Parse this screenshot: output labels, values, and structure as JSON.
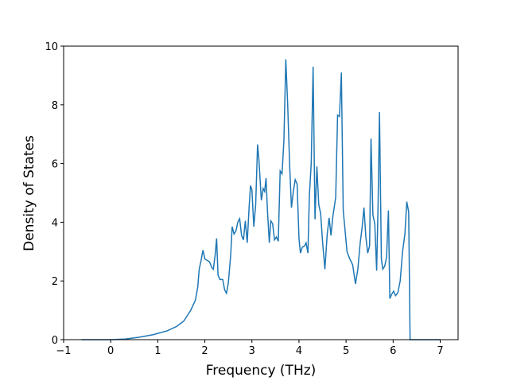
{
  "chart_data": {
    "type": "line",
    "xlabel": "Frequency (THz)",
    "ylabel": "Density of States",
    "xlim": [
      -1.0,
      7.38
    ],
    "ylim": [
      0,
      10
    ],
    "xticks": [
      {
        "value": -1,
        "label": "−1"
      },
      0,
      1,
      2,
      3,
      4,
      5,
      6,
      7
    ],
    "yticks": [
      0,
      2,
      4,
      6,
      8,
      10
    ],
    "x": [
      -0.62,
      0,
      0.3,
      0.6,
      0.9,
      1.2,
      1.4,
      1.55,
      1.7,
      1.8,
      1.85,
      1.88,
      1.92,
      1.96,
      2.0,
      2.05,
      2.1,
      2.15,
      2.18,
      2.22,
      2.25,
      2.28,
      2.32,
      2.38,
      2.42,
      2.46,
      2.5,
      2.55,
      2.58,
      2.62,
      2.66,
      2.7,
      2.74,
      2.78,
      2.82,
      2.86,
      2.9,
      2.94,
      2.97,
      3.0,
      3.04,
      3.08,
      3.12,
      3.15,
      3.2,
      3.24,
      3.27,
      3.3,
      3.33,
      3.37,
      3.4,
      3.44,
      3.48,
      3.52,
      3.56,
      3.6,
      3.64,
      3.68,
      3.72,
      3.76,
      3.8,
      3.84,
      3.88,
      3.92,
      3.96,
      4.0,
      4.03,
      4.07,
      4.12,
      4.15,
      4.19,
      4.22,
      4.26,
      4.3,
      4.34,
      4.38,
      4.42,
      4.46,
      4.5,
      4.55,
      4.6,
      4.64,
      4.68,
      4.72,
      4.78,
      4.82,
      4.86,
      4.9,
      4.94,
      4.98,
      5.02,
      5.08,
      5.14,
      5.2,
      5.25,
      5.3,
      5.34,
      5.38,
      5.42,
      5.46,
      5.5,
      5.53,
      5.57,
      5.61,
      5.65,
      5.68,
      5.71,
      5.75,
      5.78,
      5.82,
      5.86,
      5.9,
      5.93,
      5.97,
      6.01,
      6.05,
      6.1,
      6.15,
      6.2,
      6.25,
      6.29,
      6.33,
      6.36,
      6.5,
      7.0
    ],
    "series": [
      {
        "color": "#1f77b4",
        "values": [
          0,
          0,
          0.02,
          0.08,
          0.17,
          0.3,
          0.45,
          0.63,
          1.0,
          1.35,
          1.8,
          2.4,
          2.7,
          3.05,
          2.75,
          2.7,
          2.65,
          2.45,
          2.4,
          2.9,
          3.45,
          2.2,
          2.05,
          2.05,
          1.7,
          1.58,
          1.95,
          2.9,
          3.85,
          3.6,
          3.7,
          4.0,
          4.12,
          3.55,
          3.4,
          4.05,
          3.3,
          4.5,
          5.25,
          5.1,
          3.85,
          4.6,
          6.65,
          6.1,
          4.75,
          5.15,
          5.05,
          5.5,
          4.4,
          3.3,
          4.05,
          3.95,
          3.4,
          3.5,
          3.35,
          5.75,
          5.65,
          6.8,
          9.55,
          8.0,
          6.0,
          4.5,
          5.05,
          5.45,
          5.3,
          3.45,
          2.95,
          3.15,
          3.2,
          3.3,
          2.95,
          4.9,
          6.0,
          9.3,
          4.1,
          5.9,
          4.6,
          4.3,
          3.35,
          2.4,
          3.6,
          4.15,
          3.55,
          4.2,
          4.85,
          7.65,
          7.6,
          9.1,
          4.4,
          3.7,
          3.0,
          2.75,
          2.55,
          1.9,
          2.4,
          3.3,
          3.8,
          4.5,
          3.5,
          2.95,
          3.2,
          6.85,
          4.25,
          3.95,
          2.35,
          4.6,
          7.75,
          2.75,
          2.4,
          2.5,
          2.8,
          4.4,
          1.4,
          1.55,
          1.65,
          1.5,
          1.6,
          2.0,
          3.0,
          3.6,
          4.7,
          4.35,
          0,
          0,
          0
        ]
      }
    ]
  }
}
